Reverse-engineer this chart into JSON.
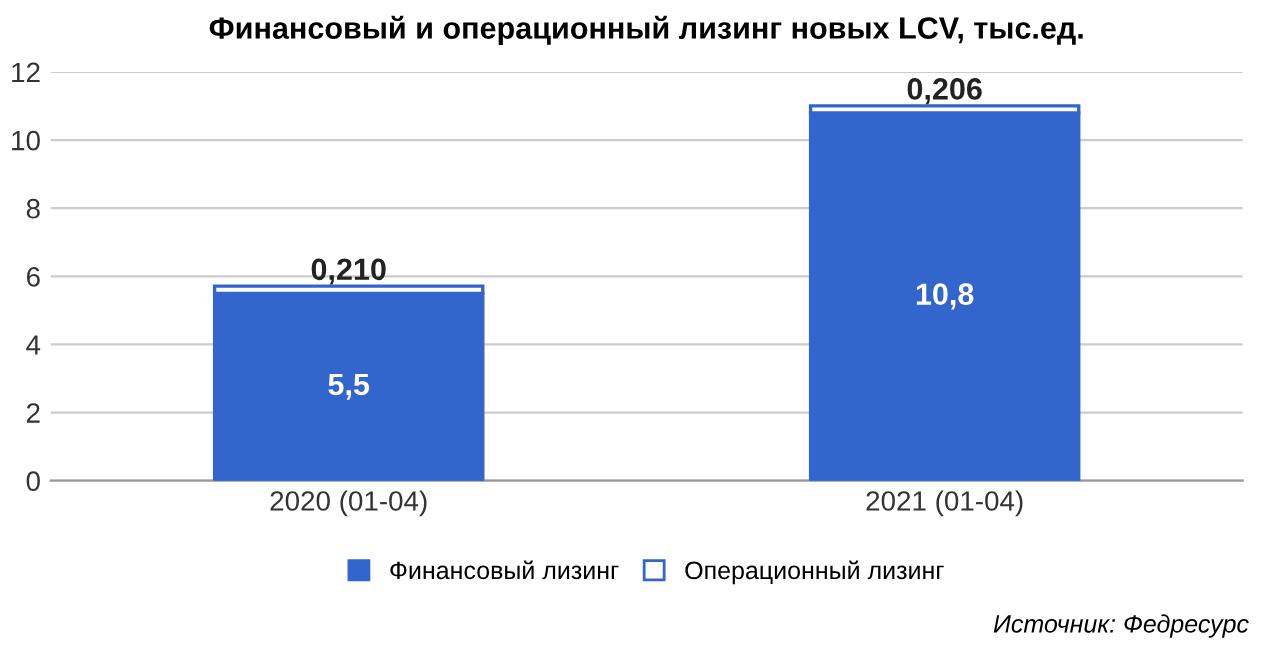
{
  "chart_data": {
    "type": "bar",
    "title": "Финансовый и операционный лизинг новых LCV, тыс.ед.",
    "categories": [
      "2020 (01-04)",
      "2021 (01-04)"
    ],
    "stacked": true,
    "series": [
      {
        "name": "Финансовый лизинг",
        "color": "#3366cc",
        "values": [
          5.5,
          10.8
        ],
        "value_labels": [
          "5,5",
          "10,8"
        ]
      },
      {
        "name": "Операционный лизинг",
        "color": "#ffffff",
        "values": [
          0.21,
          0.206
        ],
        "value_labels": [
          "0,210",
          "0,206"
        ]
      }
    ],
    "ylim": [
      0,
      12
    ],
    "yticks": [
      0,
      2,
      4,
      6,
      8,
      10,
      12
    ],
    "grid": "y",
    "legend": "bottom",
    "annotations": [
      "Источник: Федресурс"
    ]
  }
}
